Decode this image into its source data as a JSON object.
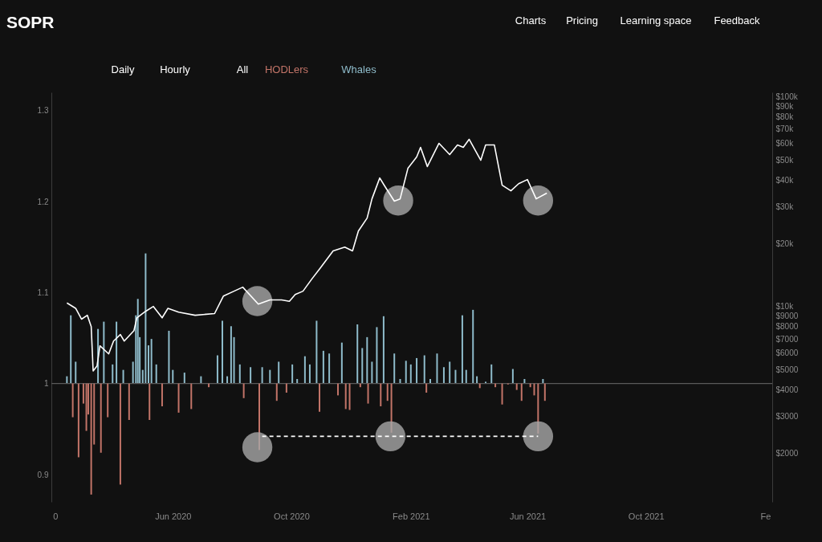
{
  "chart_data": {
    "type": "bar",
    "title": "SOPR",
    "annotations": [
      "Charts",
      "Pricing",
      "Learning space",
      "Feedback",
      "Daily",
      "Hourly",
      "All",
      "HODLers",
      "Whales"
    ],
    "xlim": [
      "2020-01-28",
      "2022-02-08"
    ],
    "xticks": [
      {
        "value": "2020-02-01",
        "label": "0"
      },
      {
        "value": "2020-06-01",
        "label": "Jun 2020"
      },
      {
        "value": "2020-10-01",
        "label": "Oct 2020"
      },
      {
        "value": "2021-02-01",
        "label": "Feb 2021"
      },
      {
        "value": "2021-06-01",
        "label": "Jun 2021"
      },
      {
        "value": "2021-10-01",
        "label": "Oct 2021"
      },
      {
        "value": "2022-02-01",
        "label": "Fe"
      }
    ],
    "ylim": [
      0.87,
      1.32
    ],
    "yticks": [
      0.9,
      1,
      1.1,
      1.2,
      1.3
    ],
    "y2lim": [
      1170,
      105000
    ],
    "y2ticks": [
      {
        "value": 2000,
        "label": "$2000"
      },
      {
        "value": 3000,
        "label": "$3000"
      },
      {
        "value": 4000,
        "label": "$4000"
      },
      {
        "value": 5000,
        "label": "$5000"
      },
      {
        "value": 6000,
        "label": "$6000"
      },
      {
        "value": 7000,
        "label": "$7000"
      },
      {
        "value": 8000,
        "label": "$8000"
      },
      {
        "value": 9000,
        "label": "$9000"
      },
      {
        "value": 10000,
        "label": "$10k"
      },
      {
        "value": 20000,
        "label": "$20k"
      },
      {
        "value": 30000,
        "label": "$30k"
      },
      {
        "value": 40000,
        "label": "$40k"
      },
      {
        "value": 50000,
        "label": "$50k"
      },
      {
        "value": 60000,
        "label": "$60k"
      },
      {
        "value": 70000,
        "label": "$70k"
      },
      {
        "value": 80000,
        "label": "$80k"
      },
      {
        "value": 90000,
        "label": "$90k"
      },
      {
        "value": 100000,
        "label": "$100k"
      }
    ],
    "log": "y2",
    "grid": false,
    "ref_lines": [
      {
        "axis": "y",
        "value": 1,
        "color": "#5a5a5a"
      }
    ],
    "series": [
      {
        "color": "#8fbccb",
        "x": [
          "2020-02-13",
          "2020-02-17",
          "2020-02-22",
          "2020-03-16",
          "2020-03-22",
          "2020-03-31",
          "2020-04-04",
          "2020-04-11",
          "2020-04-21",
          "2020-04-24",
          "2020-04-26",
          "2020-04-28",
          "2020-05-01",
          "2020-05-04",
          "2020-05-07",
          "2020-05-10",
          "2020-05-15",
          "2020-05-28",
          "2020-06-01",
          "2020-06-13",
          "2020-06-30",
          "2020-07-17",
          "2020-07-22",
          "2020-07-27",
          "2020-07-31",
          "2020-08-03",
          "2020-08-09",
          "2020-08-20",
          "2020-09-01",
          "2020-09-09",
          "2020-09-18",
          "2020-10-02",
          "2020-10-07",
          "2020-10-15",
          "2020-10-20",
          "2020-10-27",
          "2020-11-03",
          "2020-11-09",
          "2020-11-22",
          "2020-12-08",
          "2020-12-13",
          "2020-12-18",
          "2020-12-23",
          "2020-12-28",
          "2021-01-04",
          "2021-01-15",
          "2021-01-21",
          "2021-01-27",
          "2021-02-01",
          "2021-02-07",
          "2021-02-15",
          "2021-02-21",
          "2021-02-28",
          "2021-03-07",
          "2021-03-13",
          "2021-03-19",
          "2021-03-26",
          "2021-03-30",
          "2021-04-06",
          "2021-04-10",
          "2021-04-19",
          "2021-04-25",
          "2021-05-17",
          "2021-05-29",
          "2021-06-17"
        ],
        "values": [
          0.008,
          0.075,
          0.024,
          0.06,
          0.068,
          0.021,
          0.068,
          0.015,
          0.024,
          0.075,
          0.093,
          0.051,
          0.015,
          0.143,
          0.042,
          0.049,
          0.021,
          0.058,
          0.015,
          0.012,
          0.008,
          0.031,
          0.069,
          0.008,
          0.063,
          0.051,
          0.021,
          0.018,
          0.018,
          0.015,
          0.024,
          0.021,
          0.005,
          0.03,
          0.021,
          0.069,
          0.036,
          0.033,
          0.045,
          0.065,
          0.039,
          0.051,
          0.024,
          0.062,
          0.074,
          0.033,
          0.005,
          0.025,
          0.021,
          0.028,
          0.031,
          0.005,
          0.033,
          0.018,
          0.024,
          0.015,
          0.075,
          0.015,
          0.081,
          0.008,
          0.002,
          0.021,
          0.016,
          0.005,
          0.005
        ],
        "base": [
          1,
          1,
          1,
          1,
          1,
          1,
          1,
          1,
          1,
          1,
          1,
          1,
          1,
          1,
          1,
          1,
          1,
          1,
          1,
          1,
          1,
          1,
          1,
          1,
          1,
          1,
          1,
          1,
          1,
          1,
          1,
          1,
          1,
          1,
          1,
          1,
          1,
          1,
          1,
          1,
          1,
          1,
          1,
          1,
          1,
          1,
          1,
          1,
          1,
          1,
          1,
          1,
          1,
          1,
          1,
          1,
          1,
          1,
          1,
          1,
          1,
          1,
          1,
          1,
          1
        ]
      },
      {
        "color": "#c27468",
        "x": [
          "2020-02-19",
          "2020-02-25",
          "2020-03-01",
          "2020-03-04",
          "2020-03-06",
          "2020-03-09",
          "2020-03-12",
          "2020-03-19",
          "2020-03-26",
          "2020-04-08",
          "2020-04-17",
          "2020-05-08",
          "2020-05-21",
          "2020-06-07",
          "2020-06-20",
          "2020-07-08",
          "2020-08-13",
          "2020-08-29",
          "2020-09-16",
          "2020-09-26",
          "2020-10-30",
          "2020-11-18",
          "2020-11-26",
          "2020-11-30",
          "2020-12-11",
          "2020-12-19",
          "2021-01-01",
          "2021-01-08",
          "2021-01-12",
          "2021-02-17",
          "2021-04-13",
          "2021-04-29",
          "2021-05-06",
          "2021-05-12",
          "2021-05-21",
          "2021-05-26",
          "2021-06-04",
          "2021-06-08",
          "2021-06-12",
          "2021-06-19"
        ],
        "values": [
          -0.037,
          -0.081,
          -0.022,
          -0.052,
          -0.034,
          -0.122,
          -0.067,
          -0.076,
          -0.037,
          -0.111,
          -0.04,
          -0.04,
          -0.025,
          -0.032,
          -0.028,
          -0.004,
          -0.016,
          -0.073,
          -0.019,
          -0.01,
          -0.031,
          -0.013,
          -0.028,
          -0.029,
          -0.004,
          -0.022,
          -0.025,
          -0.019,
          -0.054,
          -0.01,
          -0.005,
          -0.004,
          -0.023,
          -0.001,
          -0.007,
          -0.019,
          -0.004,
          -0.013,
          -0.055,
          -0.019
        ],
        "base": [
          1,
          1,
          1,
          1,
          1,
          1,
          1,
          1,
          1,
          1,
          1,
          1,
          1,
          1,
          1,
          1,
          1,
          1,
          1,
          1,
          1,
          1,
          1,
          1,
          1,
          1,
          1,
          1,
          1,
          1,
          1,
          1,
          1,
          1,
          1,
          1,
          1,
          1,
          1,
          1
        ]
      },
      {
        "type": "line",
        "color": "#ffffff",
        "line_style": "dashed",
        "x": [
          "2020-09-01",
          "2021-06-12"
        ],
        "values": [
          0.942,
          0.942
        ]
      },
      {
        "type": "scatter",
        "color": "#a8a8a8",
        "marker": "circle",
        "x": [
          "2020-08-27",
          "2021-01-11",
          "2021-06-12"
        ],
        "values": [
          0.93,
          0.942,
          0.942
        ]
      },
      {
        "type": "line",
        "axis": "y2",
        "color": "#ffffff",
        "line_style": "solid",
        "x": [
          "2020-02-13",
          "2020-02-22",
          "2020-02-28",
          "2020-03-05",
          "2020-03-09",
          "2020-03-11",
          "2020-03-15",
          "2020-03-18",
          "2020-03-27",
          "2020-04-01",
          "2020-04-08",
          "2020-04-12",
          "2020-04-22",
          "2020-04-25",
          "2020-05-04",
          "2020-05-12",
          "2020-05-21",
          "2020-05-27",
          "2020-06-07",
          "2020-06-24",
          "2020-07-14",
          "2020-07-23",
          "2020-08-03",
          "2020-08-12",
          "2020-08-28",
          "2020-09-09",
          "2020-09-21",
          "2020-09-29",
          "2020-10-05",
          "2020-10-13",
          "2020-10-22",
          "2020-10-31",
          "2020-11-13",
          "2020-11-25",
          "2020-12-03",
          "2020-12-09",
          "2020-12-18",
          "2020-12-23",
          "2020-12-31",
          "2021-01-05",
          "2021-01-15",
          "2021-01-21",
          "2021-01-29",
          "2021-02-07",
          "2021-02-11",
          "2021-02-18",
          "2021-03-02",
          "2021-03-13",
          "2021-03-21",
          "2021-03-27",
          "2021-04-02",
          "2021-04-14",
          "2021-04-19",
          "2021-04-28",
          "2021-05-06",
          "2021-05-15",
          "2021-05-23",
          "2021-06-01",
          "2021-06-10",
          "2021-06-21"
        ],
        "values": [
          10400,
          9800,
          8700,
          9080,
          8020,
          4930,
          5200,
          6490,
          5940,
          6840,
          7350,
          6840,
          7670,
          8830,
          9480,
          10000,
          8830,
          9800,
          9400,
          9080,
          9250,
          11200,
          11830,
          12360,
          10260,
          10740,
          10740,
          10590,
          11400,
          11830,
          13500,
          15300,
          18400,
          19200,
          18400,
          22900,
          26400,
          32600,
          41000,
          37600,
          31800,
          32600,
          45600,
          51600,
          57400,
          46500,
          60000,
          53000,
          58900,
          57400,
          62700,
          49800,
          58900,
          58900,
          37900,
          35600,
          38500,
          40300,
          32600,
          34700
        ]
      },
      {
        "type": "scatter",
        "axis": "y2",
        "color": "#a8a8a8",
        "marker": "circle",
        "x": [
          "2020-08-27",
          "2021-01-19",
          "2021-06-12"
        ],
        "values": [
          10600,
          32000,
          32000
        ]
      }
    ]
  }
}
